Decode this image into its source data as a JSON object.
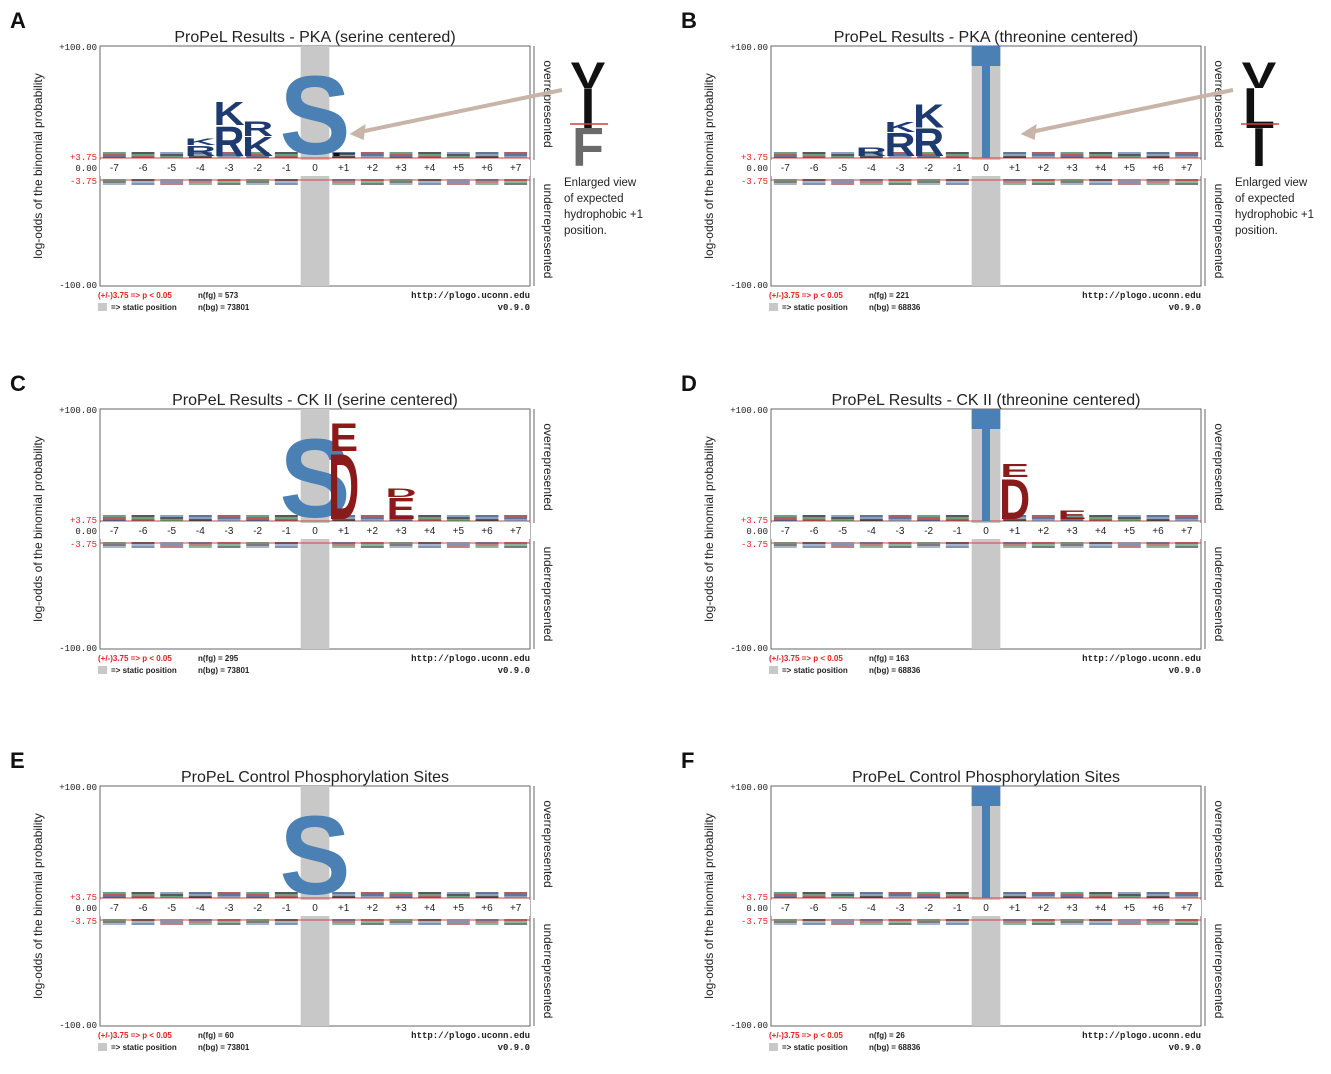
{
  "common": {
    "ylabel": "log-odds of the binomial probability",
    "y_top": "+100.00",
    "y_zero": "0.00",
    "y_bottom": "-100.00",
    "y_sig_pos": "+3.75",
    "y_sig_neg": "-3.75",
    "overrepresented": "overrepresented",
    "underrepresented": "underrepresented",
    "sig_note": "(+/-)3.75 => p < 0.05",
    "static_note": "=> static position",
    "url": "http://plogo.uconn.edu",
    "version": "v0.9.0",
    "positions": [
      "-7",
      "-6",
      "-5",
      "-4",
      "-3",
      "-2",
      "-1",
      "0",
      "+1",
      "+2",
      "+3",
      "+4",
      "+5",
      "+6",
      "+7"
    ],
    "colors": {
      "basic": "#1f3a6e",
      "acidic": "#8b1a1a",
      "hydrophobic": "#111111",
      "polar": "#2a7a4a",
      "fixed_S": "#4a80b4",
      "fixed_T": "#4a80b4",
      "static_bg": "#c8c8c8",
      "threshold": "#d04040",
      "arrow": "#c8b4a8",
      "sig_text": "#e02020"
    }
  },
  "chart_data": [
    {
      "type": "sequence-logo",
      "panel": "A",
      "title": "ProPeL Results - PKA (serine centered)",
      "center": "S",
      "nfg": "n(fg) = 573",
      "nbg": "n(bg) = 73801",
      "ylim": [
        -100,
        100
      ],
      "threshold": 3.75,
      "over": [
        {
          "pos": "-4",
          "letters": [
            {
              "aa": "R",
              "h": 10
            },
            {
              "aa": "K",
              "h": 6
            }
          ]
        },
        {
          "pos": "-3",
          "letters": [
            {
              "aa": "R",
              "h": 28
            },
            {
              "aa": "K",
              "h": 22
            }
          ]
        },
        {
          "pos": "-2",
          "letters": [
            {
              "aa": "K",
              "h": 18
            },
            {
              "aa": "R",
              "h": 14
            }
          ]
        },
        {
          "pos": "+1",
          "letters": [
            {
              "aa": "F",
              "h": 3
            },
            {
              "aa": "I",
              "h": 2
            }
          ]
        }
      ],
      "inset_caption": [
        "Enlarged view",
        "of expected",
        "hydrophobic +1",
        "position."
      ],
      "inset_letters": [
        "F",
        "I",
        "V"
      ]
    },
    {
      "type": "sequence-logo",
      "panel": "B",
      "title": "ProPeL Results - PKA (threonine centered)",
      "center": "T",
      "nfg": "n(fg) = 221",
      "nbg": "n(bg) = 68836",
      "ylim": [
        -100,
        100
      ],
      "threshold": 3.75,
      "over": [
        {
          "pos": "-4",
          "letters": [
            {
              "aa": "R",
              "h": 8
            }
          ]
        },
        {
          "pos": "-3",
          "letters": [
            {
              "aa": "R",
              "h": 22
            },
            {
              "aa": "K",
              "h": 10
            }
          ]
        },
        {
          "pos": "-2",
          "letters": [
            {
              "aa": "R",
              "h": 26
            },
            {
              "aa": "K",
              "h": 22
            }
          ]
        },
        {
          "pos": "+1",
          "letters": [
            {
              "aa": "I",
              "h": 2
            }
          ]
        }
      ],
      "inset_caption": [
        "Enlarged view",
        "of expected",
        "hydrophobic +1",
        "position."
      ],
      "inset_letters": [
        "I",
        "L",
        "V"
      ]
    },
    {
      "type": "sequence-logo",
      "panel": "C",
      "title": "ProPeL Results - CK II (serine centered)",
      "center": "S",
      "nfg": "n(fg) = 295",
      "nbg": "n(bg) = 73801",
      "ylim": [
        -100,
        100
      ],
      "threshold": 3.75,
      "over": [
        {
          "pos": "+1",
          "letters": [
            {
              "aa": "D",
              "h": 62
            },
            {
              "aa": "E",
              "h": 26
            }
          ]
        },
        {
          "pos": "+3",
          "letters": [
            {
              "aa": "E",
              "h": 20
            },
            {
              "aa": "D",
              "h": 8
            }
          ]
        }
      ]
    },
    {
      "type": "sequence-logo",
      "panel": "D",
      "title": "ProPeL Results - CK II (threonine centered)",
      "center": "T",
      "nfg": "n(fg) = 163",
      "nbg": "n(bg) = 68836",
      "ylim": [
        -100,
        100
      ],
      "threshold": 3.75,
      "over": [
        {
          "pos": "+1",
          "letters": [
            {
              "aa": "D",
              "h": 38
            },
            {
              "aa": "E",
              "h": 12
            }
          ]
        },
        {
          "pos": "+3",
          "letters": [
            {
              "aa": "E",
              "h": 8
            }
          ]
        }
      ]
    },
    {
      "type": "sequence-logo",
      "panel": "E",
      "title": "ProPeL Control Phosphorylation Sites",
      "center": "S",
      "nfg": "n(fg) = 60",
      "nbg": "n(bg) = 73801",
      "ylim": [
        -100,
        100
      ],
      "threshold": 3.75,
      "over": []
    },
    {
      "type": "sequence-logo",
      "panel": "F",
      "title": "ProPeL Control Phosphorylation Sites",
      "center": "T",
      "nfg": "n(fg) = 26",
      "nbg": "n(bg) = 68836",
      "ylim": [
        -100,
        100
      ],
      "threshold": 3.75,
      "over": []
    }
  ]
}
